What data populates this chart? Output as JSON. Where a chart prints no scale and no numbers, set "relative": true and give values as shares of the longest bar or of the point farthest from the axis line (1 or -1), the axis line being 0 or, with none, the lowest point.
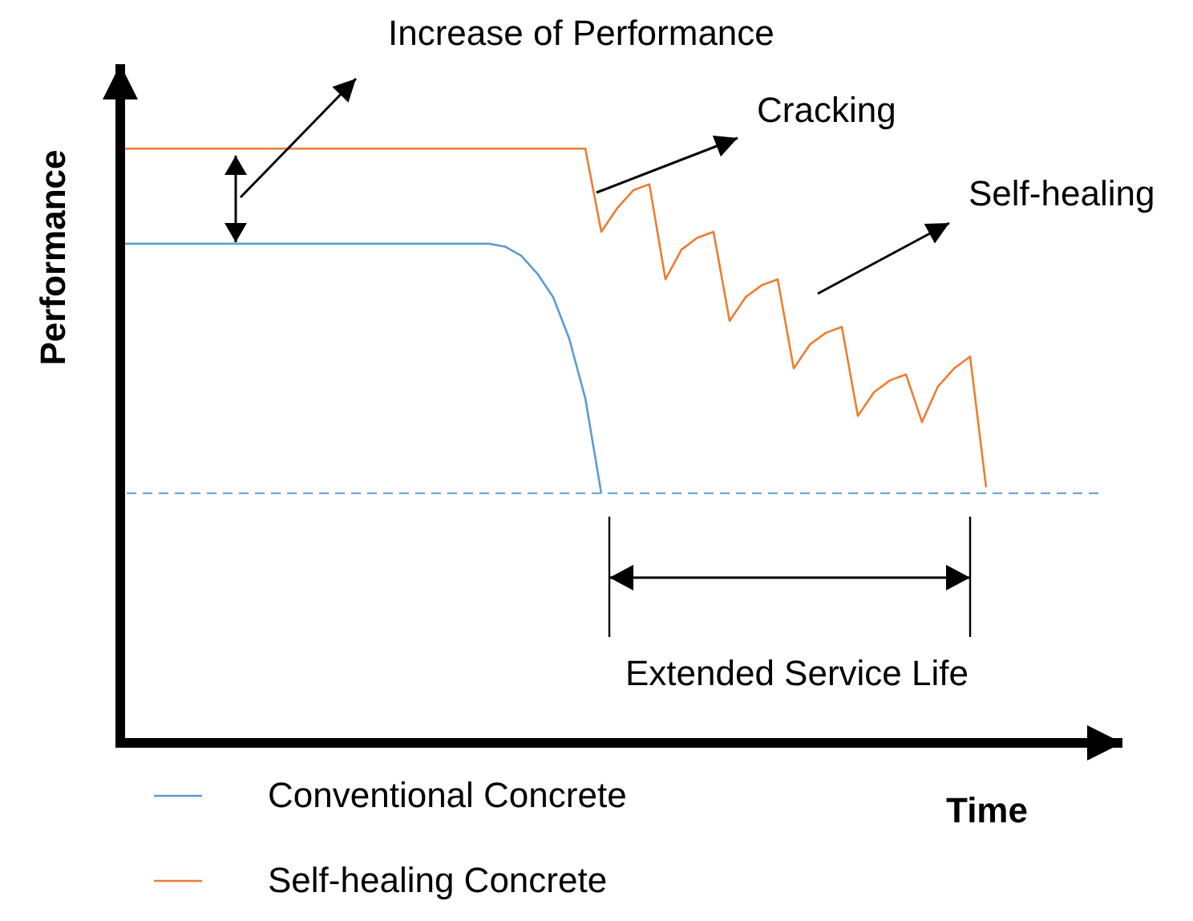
{
  "chart_data": {
    "type": "line",
    "relative": true,
    "xlabel": "Time",
    "ylabel": "Performance",
    "legend": "bottom",
    "categories": [
      null,
      null,
      null,
      null,
      null,
      null,
      null,
      null,
      null,
      null,
      null,
      null,
      null,
      null,
      null,
      null,
      null,
      null,
      null,
      null,
      null,
      null,
      null,
      null,
      null,
      null,
      null,
      null,
      null,
      null,
      null,
      null,
      null,
      null,
      null,
      null,
      null,
      null,
      null,
      null,
      null,
      null,
      null,
      null,
      null,
      null,
      null,
      null,
      null,
      null,
      null,
      null,
      null,
      null,
      null,
      null,
      null,
      null,
      null,
      null,
      null,
      null
    ],
    "series": [
      {
        "name": "Conventional Concrete",
        "color": "#5b9bd5",
        "values": [
          0.84,
          0.84,
          0.84,
          0.84,
          0.84,
          0.84,
          0.84,
          0.84,
          0.84,
          0.84,
          0.84,
          0.84,
          0.84,
          0.84,
          0.84,
          0.84,
          0.84,
          0.84,
          0.84,
          0.84,
          0.84,
          0.84,
          0.84,
          0.84,
          0.835,
          0.82,
          0.79,
          0.75,
          0.68,
          0.58,
          0.42,
          null,
          null,
          null,
          null,
          null,
          null,
          null,
          null,
          null,
          null,
          null,
          null,
          null,
          null,
          null,
          null,
          null,
          null,
          null,
          null,
          null,
          null,
          null,
          null,
          null,
          null,
          null,
          null,
          null,
          null,
          null
        ]
      },
      {
        "name": "Self-healing Concrete",
        "color": "#ed7d31",
        "values": [
          1,
          1,
          1,
          1,
          1,
          1,
          1,
          1,
          1,
          1,
          1,
          1,
          1,
          1,
          1,
          1,
          1,
          1,
          1,
          1,
          1,
          1,
          1,
          1,
          1,
          1,
          1,
          1,
          1,
          1,
          0.86,
          0.9,
          0.93,
          0.94,
          0.78,
          0.83,
          0.85,
          0.86,
          0.71,
          0.75,
          0.77,
          0.78,
          0.63,
          0.67,
          0.69,
          0.7,
          0.55,
          0.59,
          0.61,
          0.62,
          0.54,
          0.6,
          0.63,
          0.65,
          0.43,
          null,
          null,
          null,
          null,
          null,
          null,
          null
        ]
      }
    ],
    "ref_lines": [
      {
        "axis": "y",
        "value": 0.42,
        "color": "#5b9bd5",
        "line_style": "dashed"
      }
    ],
    "annotations": [
      "Increase of Performance",
      "Cracking",
      "Self-healing",
      "Extended Service Life"
    ]
  }
}
